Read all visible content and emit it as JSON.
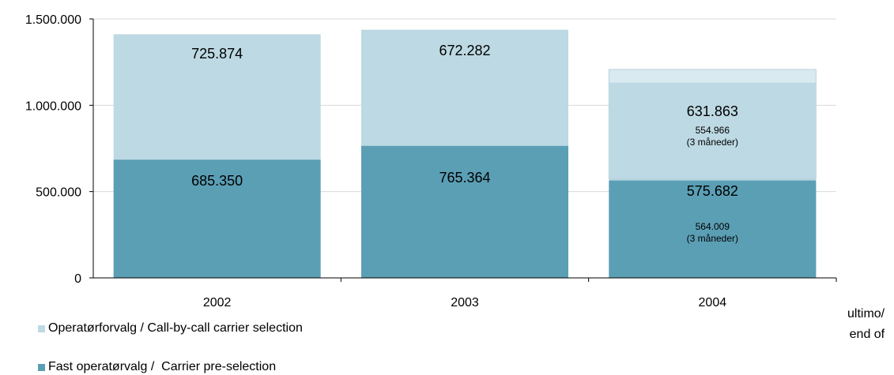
{
  "chart_data": {
    "type": "bar",
    "stacked": true,
    "categories": [
      "2002",
      "2003",
      "2004"
    ],
    "ylim": [
      0,
      1500000
    ],
    "yticks": [
      "0",
      "500.000",
      "1.000.000",
      "1.500.000"
    ],
    "ytick_values": [
      0,
      500000,
      1000000,
      1500000
    ],
    "grid": true,
    "series": [
      {
        "name": "Fast operatørvalg /  Carrier pre-selection",
        "values": [
          685350,
          765364,
          564009
        ],
        "color": "#5b9fb5"
      },
      {
        "name": "Operatørforvalg / Call-by-call carrier selection",
        "values": [
          725874,
          672282,
          554966
        ],
        "color": "#bdd9e3"
      }
    ],
    "extra_2004": {
      "preselection_fullyear": 575682,
      "cbc_fullyear": 631863,
      "preselection_color": "#b5d3dd",
      "cbc_color": "#d9eaf0"
    },
    "labels": {
      "preselection": [
        "685.350",
        "765.364",
        "575.682"
      ],
      "cbc": [
        "725.874",
        "672.282",
        "631.863"
      ],
      "small_2004_pre": [
        "564.009",
        "(3 måneder)"
      ],
      "small_2004_cbc": [
        "554.966",
        "(3 måneder)"
      ]
    },
    "unit_note": [
      "ultimo/",
      "end of"
    ],
    "legend_position": "bottom-left"
  }
}
